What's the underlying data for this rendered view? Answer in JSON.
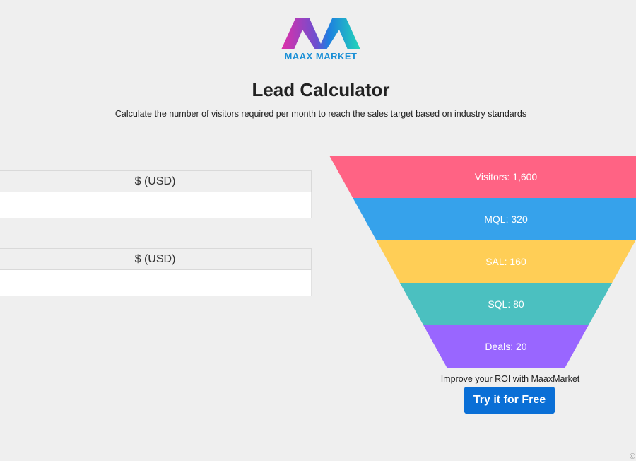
{
  "brand": {
    "name": "MAAX MARKET"
  },
  "header": {
    "title": "Lead Calculator",
    "subtitle": "Calculate the number of visitors required per month to reach the sales target based on industry standards"
  },
  "form": {
    "fields": [
      {
        "addon": "$ (USD)",
        "value": ""
      },
      {
        "addon": "$ (USD)",
        "value": ""
      }
    ]
  },
  "funnel": {
    "stages": [
      {
        "label": "Visitors: 1,600",
        "value": 1600,
        "color": "#ff6384"
      },
      {
        "label": "MQL: 320",
        "value": 320,
        "color": "#36a2eb"
      },
      {
        "label": "SAL: 160",
        "value": 160,
        "color": "#ffce56"
      },
      {
        "label": "SQL: 80",
        "value": 80,
        "color": "#4bc0c0"
      },
      {
        "label": "Deals: 20",
        "value": 20,
        "color": "#9966ff"
      }
    ]
  },
  "cta": {
    "text": "Improve your ROI with MaaxMarket",
    "button": "Try it for Free",
    "color": "#0a6fd6"
  },
  "footer": {
    "copyright": "©"
  }
}
